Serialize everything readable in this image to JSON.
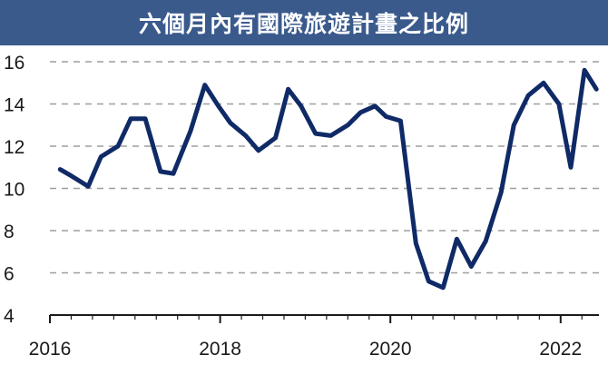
{
  "chart_data": {
    "type": "line",
    "title": "六個月內有國際旅遊計畫之比例",
    "xlabel": "",
    "ylabel": "",
    "xlim": [
      2016.0,
      2022.45
    ],
    "ylim": [
      4,
      16
    ],
    "y_ticks": [
      4,
      6,
      8,
      10,
      12,
      14,
      16
    ],
    "x_ticks": [
      2016,
      2018,
      2020,
      2022
    ],
    "grid": "horizontal-dashed",
    "series": [
      {
        "color": "#0f2a66",
        "points": [
          [
            2016.12,
            10.9
          ],
          [
            2016.25,
            10.6
          ],
          [
            2016.45,
            10.1
          ],
          [
            2016.6,
            11.5
          ],
          [
            2016.8,
            12.0
          ],
          [
            2016.95,
            13.3
          ],
          [
            2017.12,
            13.3
          ],
          [
            2017.3,
            10.8
          ],
          [
            2017.45,
            10.7
          ],
          [
            2017.65,
            12.7
          ],
          [
            2017.82,
            14.9
          ],
          [
            2017.98,
            13.9
          ],
          [
            2018.12,
            13.1
          ],
          [
            2018.3,
            12.5
          ],
          [
            2018.45,
            11.8
          ],
          [
            2018.65,
            12.4
          ],
          [
            2018.8,
            14.7
          ],
          [
            2018.95,
            13.9
          ],
          [
            2019.12,
            12.6
          ],
          [
            2019.3,
            12.5
          ],
          [
            2019.5,
            13.0
          ],
          [
            2019.65,
            13.6
          ],
          [
            2019.82,
            13.9
          ],
          [
            2019.95,
            13.4
          ],
          [
            2020.12,
            13.2
          ],
          [
            2020.3,
            7.4
          ],
          [
            2020.45,
            5.6
          ],
          [
            2020.62,
            5.3
          ],
          [
            2020.78,
            7.6
          ],
          [
            2020.95,
            6.3
          ],
          [
            2021.12,
            7.5
          ],
          [
            2021.3,
            9.8
          ],
          [
            2021.45,
            13.0
          ],
          [
            2021.62,
            14.4
          ],
          [
            2021.8,
            15.0
          ],
          [
            2021.98,
            14.0
          ],
          [
            2022.12,
            11.0
          ],
          [
            2022.28,
            15.6
          ],
          [
            2022.42,
            14.7
          ]
        ]
      }
    ],
    "colors": {
      "title_bar": "#3a5a8c",
      "line": "#0f2a66",
      "grid": "#9e9e9e",
      "axis": "#1a1a1a"
    }
  }
}
